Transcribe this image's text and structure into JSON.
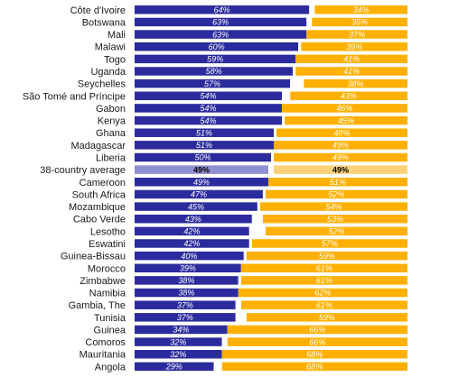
{
  "chart_data": {
    "type": "bar",
    "stacked": true,
    "orientation": "horizontal",
    "xlim": [
      0,
      100
    ],
    "colors": {
      "left": "#2b2b9e",
      "right": "#ffb000",
      "left_average": "#8f8fd0",
      "right_average": "#ffd27a",
      "gap": "#ffffff"
    },
    "rows": [
      {
        "label": "Côte d'Ivoire",
        "left": 64,
        "right": 34,
        "left_label": "64%",
        "right_label": "34%",
        "average": false
      },
      {
        "label": "Botswana",
        "left": 63,
        "right": 35,
        "left_label": "63%",
        "right_label": "35%",
        "average": false
      },
      {
        "label": "Mali",
        "left": 63,
        "right": 37,
        "left_label": "63%",
        "right_label": "37%",
        "average": false
      },
      {
        "label": "Malawi",
        "left": 60,
        "right": 39,
        "left_label": "60%",
        "right_label": "39%",
        "average": false
      },
      {
        "label": "Togo",
        "left": 59,
        "right": 41,
        "left_label": "59%",
        "right_label": "41%",
        "average": false
      },
      {
        "label": "Uganda",
        "left": 58,
        "right": 41,
        "left_label": "58%",
        "right_label": "41%",
        "average": false
      },
      {
        "label": "Seychelles",
        "left": 57,
        "right": 38,
        "left_label": "57%",
        "right_label": "38%",
        "average": false
      },
      {
        "label": "São Tomé and Príncipe",
        "left": 54,
        "right": 43,
        "left_label": "54%",
        "right_label": "43%",
        "average": false
      },
      {
        "label": "Gabon",
        "left": 54,
        "right": 46,
        "left_label": "54%",
        "right_label": "46%",
        "average": false
      },
      {
        "label": "Kenya",
        "left": 54,
        "right": 45,
        "left_label": "54%",
        "right_label": "45%",
        "average": false
      },
      {
        "label": "Ghana",
        "left": 51,
        "right": 48,
        "left_label": "51%",
        "right_label": "48%",
        "average": false
      },
      {
        "label": "Madagascar",
        "left": 51,
        "right": 49,
        "left_label": "51%",
        "right_label": "49%",
        "average": false
      },
      {
        "label": "Liberia",
        "left": 50,
        "right": 49,
        "left_label": "50%",
        "right_label": "49%",
        "average": false
      },
      {
        "label": "38-country average",
        "left": 49,
        "right": 49,
        "left_label": "49%",
        "right_label": "49%",
        "average": true
      },
      {
        "label": "Cameroon",
        "left": 49,
        "right": 51,
        "left_label": "49%",
        "right_label": "51%",
        "average": false
      },
      {
        "label": "South Africa",
        "left": 47,
        "right": 52,
        "left_label": "47%",
        "right_label": "52%",
        "average": false
      },
      {
        "label": "Mozambique",
        "left": 45,
        "right": 54,
        "left_label": "45%",
        "right_label": "54%",
        "average": false
      },
      {
        "label": "Cabo Verde",
        "left": 43,
        "right": 53,
        "left_label": "43%",
        "right_label": "53%",
        "average": false
      },
      {
        "label": "Lesotho",
        "left": 42,
        "right": 52,
        "left_label": "42%",
        "right_label": "52%",
        "average": false
      },
      {
        "label": "Eswatini",
        "left": 42,
        "right": 57,
        "left_label": "42%",
        "right_label": "57%",
        "average": false
      },
      {
        "label": "Guinea-Bissau",
        "left": 40,
        "right": 59,
        "left_label": "40%",
        "right_label": "59%",
        "average": false
      },
      {
        "label": "Morocco",
        "left": 39,
        "right": 61,
        "left_label": "39%",
        "right_label": "61%",
        "average": false
      },
      {
        "label": "Zimbabwe",
        "left": 38,
        "right": 61,
        "left_label": "38%",
        "right_label": "61%",
        "average": false
      },
      {
        "label": "Namibia",
        "left": 38,
        "right": 62,
        "left_label": "38%",
        "right_label": "62%",
        "average": false
      },
      {
        "label": "Gambia, The",
        "left": 37,
        "right": 61,
        "left_label": "37%",
        "right_label": "61%",
        "average": false
      },
      {
        "label": "Tunisia",
        "left": 37,
        "right": 59,
        "left_label": "37%",
        "right_label": "59%",
        "average": false
      },
      {
        "label": "Guinea",
        "left": 34,
        "right": 66,
        "left_label": "34%",
        "right_label": "66%",
        "average": false
      },
      {
        "label": "Comoros",
        "left": 32,
        "right": 66,
        "left_label": "32%",
        "right_label": "66%",
        "average": false
      },
      {
        "label": "Mauritania",
        "left": 32,
        "right": 68,
        "left_label": "32%",
        "right_label": "68%",
        "average": false
      },
      {
        "label": "Angola",
        "left": 29,
        "right": 68,
        "left_label": "29%",
        "right_label": "68%",
        "average": false
      }
    ]
  }
}
